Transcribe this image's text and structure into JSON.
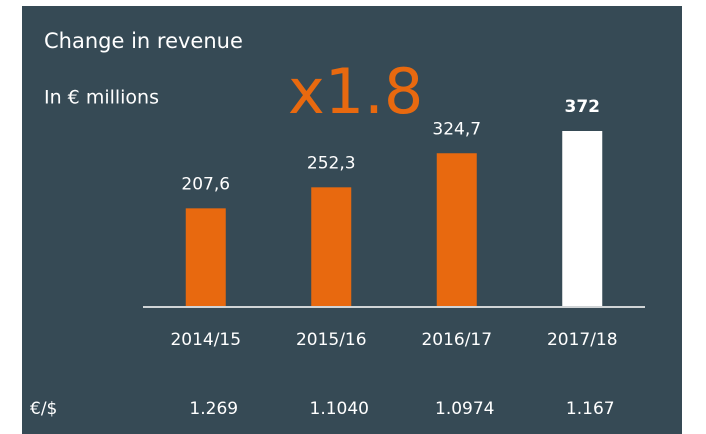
{
  "chart_data": {
    "type": "bar",
    "title": "Change in revenue",
    "subtitle": "In € millions",
    "annotation": "x1.8",
    "categories": [
      "2014/15",
      "2015/16",
      "2016/17",
      "2017/18"
    ],
    "values": [
      207.6,
      252.3,
      324.7,
      372
    ],
    "value_labels": [
      "207,6",
      "252,3",
      "324,7",
      "372"
    ],
    "colors": [
      "#e8690f",
      "#e8690f",
      "#e8690f",
      "#ffffff"
    ],
    "highlight_index": 3,
    "exchange_rates": {
      "label": "€/$",
      "values": [
        "1.269",
        "1.1040",
        "1.0974",
        "1.167"
      ]
    }
  }
}
